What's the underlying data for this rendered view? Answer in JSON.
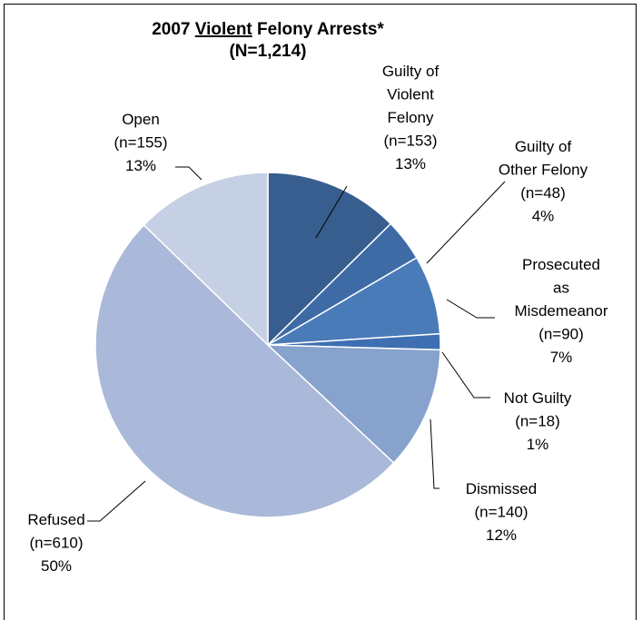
{
  "chart_data": {
    "type": "pie",
    "title": {
      "before": "2007 ",
      "underlined": "Violent",
      "after": " Felony Arrests*"
    },
    "subtitle": "(N=1,214)",
    "categories": [
      [
        "Guilty of",
        "Violent",
        "Felony"
      ],
      [
        "Guilty of",
        "Other Felony"
      ],
      [
        "Prosecuted",
        "as",
        "Misdemeanor"
      ],
      [
        "Not Guilty"
      ],
      [
        "Dismissed"
      ],
      [
        "Refused"
      ],
      [
        "Open"
      ]
    ],
    "values": [
      153,
      48,
      90,
      18,
      140,
      610,
      155
    ],
    "value_labels": [
      "(n=153)",
      "(n=48)",
      "(n=90)",
      "(n=18)",
      "(n=140)",
      "(n=610)",
      "(n=155)"
    ],
    "percents": [
      13,
      4,
      7,
      1,
      12,
      50,
      13
    ],
    "percent_labels": [
      "13%",
      "4%",
      "7%",
      "1%",
      "12%",
      "50%",
      "13%"
    ],
    "colors": [
      "#375e8e",
      "#3e6ba6",
      "#4a7bb9",
      "#3d6fb2",
      "#86a2cd",
      "#aab9d9",
      "#c6d0e4"
    ]
  }
}
